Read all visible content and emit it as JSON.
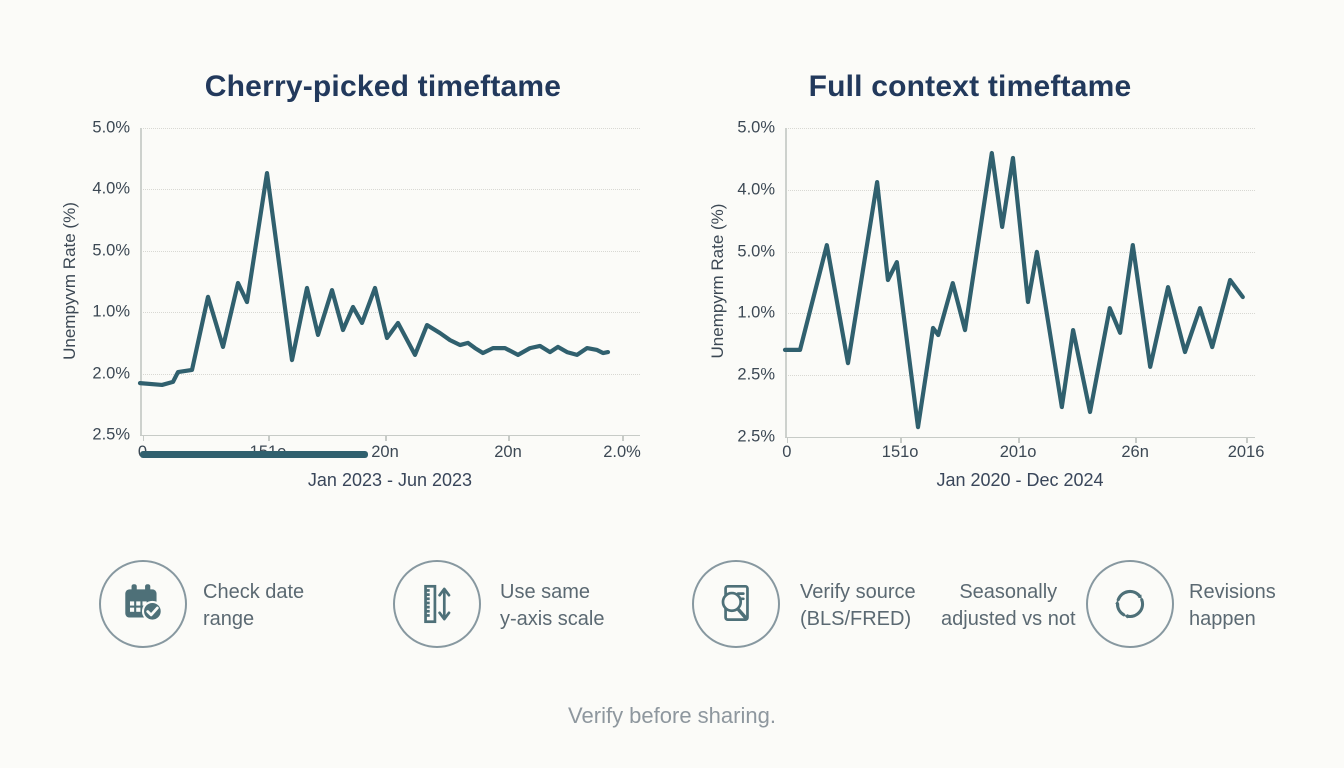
{
  "colors": {
    "accent_teal": "#30606e",
    "icon_teal": "#4e7078",
    "title_navy": "#22395c",
    "tick_text": "#3c4854",
    "tip_text": "#5b6972",
    "footer_gray": "#8e979e"
  },
  "chart_data": [
    {
      "type": "line",
      "title": "Cherry-picked timeftame",
      "y_label": "Unempyvm Rate (%)",
      "x_label": "Jan 2023 - Jun 2023",
      "y_tick_labels": [
        "5.0%",
        "4.0%",
        "5.0%",
        "1.0%",
        "2.0%",
        "2.5%"
      ],
      "x_ticks": [
        {
          "label": "0",
          "pos": 0.5
        },
        {
          "label": "151o",
          "pos": 25.6
        },
        {
          "label": "20n",
          "pos": 49.0
        },
        {
          "label": "20n",
          "pos": 73.6
        },
        {
          "label": "2.0%",
          "pos": 96.4
        }
      ],
      "grid": "dotted-horizontal",
      "legend": "none",
      "line_color": "#30606e",
      "underline_bar_pct": {
        "x1": 0,
        "x2": 45.6
      },
      "series": [
        {
          "name": "unemployment-rate",
          "coords": "percent of plot box; x left-to-right, y top-to-bottom",
          "points_pct": [
            [
              0,
              83.1
            ],
            [
              4.4,
              83.7
            ],
            [
              6.6,
              82.7
            ],
            [
              7.6,
              79.5
            ],
            [
              10.4,
              78.8
            ],
            [
              13.6,
              55
            ],
            [
              16.6,
              71.3
            ],
            [
              19.6,
              50.5
            ],
            [
              21.4,
              56.7
            ],
            [
              25.4,
              14.7
            ],
            [
              30.4,
              75.6
            ],
            [
              33.4,
              52.1
            ],
            [
              35.6,
              67.4
            ],
            [
              38.4,
              52.8
            ],
            [
              40.6,
              65.8
            ],
            [
              42.6,
              58.3
            ],
            [
              44.4,
              63.5
            ],
            [
              47,
              52.1
            ],
            [
              49.4,
              68.4
            ],
            [
              51.6,
              63.5
            ],
            [
              55,
              73.9
            ],
            [
              57.4,
              64.2
            ],
            [
              60,
              66.8
            ],
            [
              62,
              69.1
            ],
            [
              64,
              70.7
            ],
            [
              65.6,
              70
            ],
            [
              67,
              71.7
            ],
            [
              68.6,
              73.3
            ],
            [
              70.6,
              71.7
            ],
            [
              73,
              71.7
            ],
            [
              75.6,
              73.9
            ],
            [
              78,
              71.7
            ],
            [
              80,
              71
            ],
            [
              82,
              73
            ],
            [
              83.6,
              71.3
            ],
            [
              85.4,
              73
            ],
            [
              87.4,
              73.9
            ],
            [
              89.4,
              71.7
            ],
            [
              91.4,
              72.3
            ],
            [
              92.6,
              73.3
            ],
            [
              93.6,
              73
            ]
          ]
        }
      ]
    },
    {
      "type": "line",
      "title": "Full context timeftame",
      "y_label": "Unempyrm Rate (%)",
      "x_label": "Jan 2020 - Dec 2024",
      "y_tick_labels": [
        "5.0%",
        "4.0%",
        "5.0%",
        "1.0%",
        "2.5%",
        "2.5%"
      ],
      "x_ticks": [
        {
          "label": "0",
          "pos": 0.4
        },
        {
          "label": "151o",
          "pos": 24.5
        },
        {
          "label": "201o",
          "pos": 49.6
        },
        {
          "label": "26n",
          "pos": 74.5
        },
        {
          "label": "2016",
          "pos": 98.1
        }
      ],
      "grid": "dotted-horizontal",
      "legend": "none",
      "line_color": "#30606e",
      "underline_bar_pct": null,
      "series": [
        {
          "name": "unemployment-rate",
          "coords": "percent of plot box; x left-to-right, y top-to-bottom",
          "points_pct": [
            [
              0,
              71.8
            ],
            [
              3.2,
              71.8
            ],
            [
              8.9,
              37.9
            ],
            [
              13.4,
              76.1
            ],
            [
              19.6,
              17.5
            ],
            [
              21.9,
              49.2
            ],
            [
              23.8,
              43.4
            ],
            [
              28.3,
              96.8
            ],
            [
              31.5,
              64.7
            ],
            [
              32.6,
              67
            ],
            [
              35.7,
              50.2
            ],
            [
              38.3,
              65.4
            ],
            [
              44,
              8.1
            ],
            [
              46.2,
              32
            ],
            [
              48.5,
              9.7
            ],
            [
              51.7,
              56.3
            ],
            [
              53.6,
              40.1
            ],
            [
              58.9,
              90.3
            ],
            [
              61.3,
              65.4
            ],
            [
              64.9,
              91.9
            ],
            [
              69.1,
              58.3
            ],
            [
              71.3,
              66.3
            ],
            [
              74,
              37.9
            ],
            [
              77.7,
              77.3
            ],
            [
              81.5,
              51.5
            ],
            [
              85.1,
              72.5
            ],
            [
              88.3,
              58.3
            ],
            [
              90.9,
              70.9
            ],
            [
              94.7,
              49.2
            ],
            [
              97.4,
              54.7
            ]
          ]
        }
      ]
    }
  ],
  "tips": [
    {
      "icon": "calendar-check-icon",
      "line1": "Check date",
      "line2": "range"
    },
    {
      "icon": "ruler-yaxis-icon",
      "line1": "Use same",
      "line2": "y-axis scale"
    },
    {
      "icon": "magnifier-document-icon",
      "line1": "Verify source",
      "line2": "(BLS/FRED)"
    },
    {
      "icon": null,
      "line1": "Seasonally",
      "line2": "adjusted vs not"
    },
    {
      "icon": "refresh-cycle-icon",
      "line1": "Revisions",
      "line2": "happen"
    }
  ],
  "footer": {
    "text": "Verify before sharing."
  }
}
